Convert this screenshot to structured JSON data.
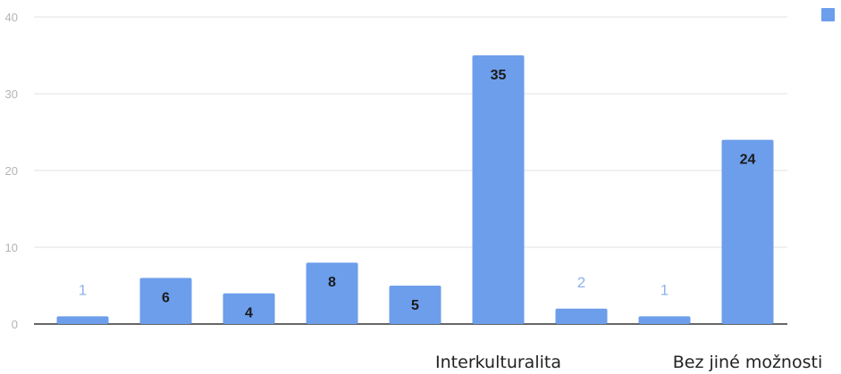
{
  "chart_data": {
    "type": "bar",
    "categories": [
      "",
      "",
      "",
      "",
      "",
      "Interkulturalita",
      "",
      "",
      "Bez jiné možnosti"
    ],
    "values": [
      1,
      6,
      4,
      8,
      5,
      35,
      2,
      1,
      24
    ],
    "ylim": [
      0,
      40
    ],
    "yticks": [
      0,
      10,
      20,
      30,
      40
    ],
    "grid": true,
    "legend": "top-right",
    "colors": {
      "bar": "#6d9eeb",
      "grid": "#e0e0e0",
      "baseline": "#333333"
    }
  }
}
